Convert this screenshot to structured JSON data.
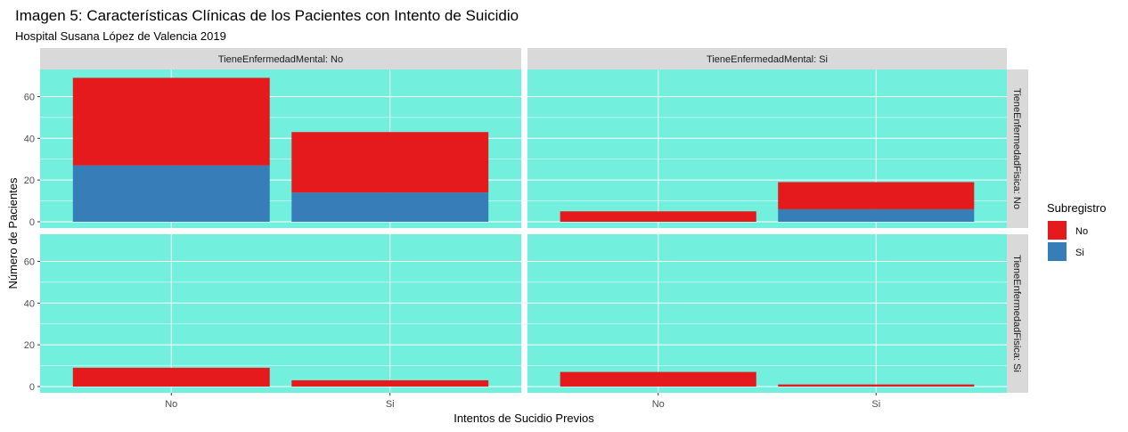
{
  "chart_data": {
    "type": "bar",
    "stacked": true,
    "title": "Imagen 5: Características Clínicas de los Pacientes con Intento de Suicidio",
    "subtitle": "Hospital Susana López de Valencia 2019",
    "xlabel": "Intentos de Sucidio Previos",
    "ylabel": "Número de Pacientes",
    "categories": [
      "No",
      "Si"
    ],
    "ylim": [
      -3,
      73
    ],
    "yticks": [
      0,
      20,
      40,
      60
    ],
    "grid": true,
    "panel_background": "#73EFDE",
    "strip_background": "#D9D9D9",
    "col_facets": [
      "TieneEnfermedadMental: No",
      "TieneEnfermedadMental: Si"
    ],
    "row_facets": [
      "TieneEnfermedadFisica: No",
      "TieneEnfermedadFisica: Si"
    ],
    "legend": {
      "title": "Subregistro",
      "position": "right",
      "entries": [
        {
          "name": "No",
          "color": "#E41A1C"
        },
        {
          "name": "Si",
          "color": "#377EB8"
        }
      ]
    },
    "panels": [
      {
        "row": 0,
        "col": 0,
        "series": [
          {
            "name": "Si",
            "values": [
              27,
              14
            ]
          },
          {
            "name": "No",
            "values": [
              42,
              29
            ]
          }
        ]
      },
      {
        "row": 0,
        "col": 1,
        "series": [
          {
            "name": "Si",
            "values": [
              0,
              6
            ]
          },
          {
            "name": "No",
            "values": [
              5,
              13
            ]
          }
        ]
      },
      {
        "row": 1,
        "col": 0,
        "series": [
          {
            "name": "Si",
            "values": [
              0,
              0
            ]
          },
          {
            "name": "No",
            "values": [
              9,
              3
            ]
          }
        ]
      },
      {
        "row": 1,
        "col": 1,
        "series": [
          {
            "name": "Si",
            "values": [
              0,
              0
            ]
          },
          {
            "name": "No",
            "values": [
              7,
              1
            ]
          }
        ]
      }
    ]
  }
}
